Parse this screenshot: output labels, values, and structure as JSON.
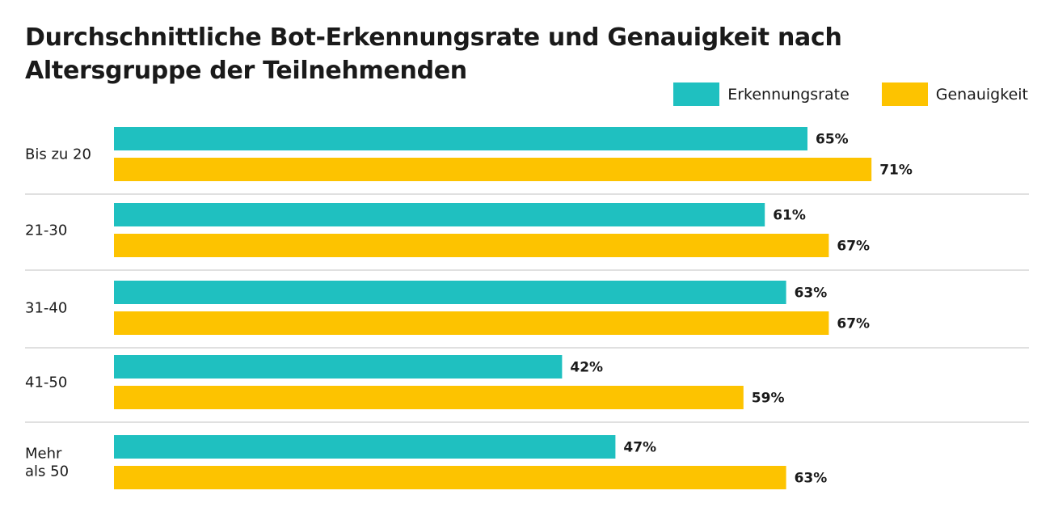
{
  "colors": {
    "Erkennungsrate": "#1fc0c0",
    "Genauigkeit": "#fdc300",
    "divider": "#d6d6d6"
  },
  "chart_data": {
    "type": "bar",
    "orientation": "horizontal",
    "title": "Durchschnittliche Bot-Erkennungsrate und Genauigkeit nach Altersgruppe der Teilnehmenden",
    "categories": [
      [
        "Bis zu 20"
      ],
      [
        "21-30"
      ],
      [
        "31-40"
      ],
      [
        "41-50"
      ],
      [
        "Mehr",
        "als 50"
      ]
    ],
    "series": [
      {
        "name": "Erkennungsrate",
        "values": [
          65,
          61,
          63,
          42,
          47
        ],
        "labels": [
          "65%",
          "61%",
          "63%",
          "42%",
          "47%"
        ]
      },
      {
        "name": "Genauigkeit",
        "values": [
          71,
          67,
          67,
          59,
          63
        ],
        "labels": [
          "71%",
          "67%",
          "67%",
          "59%",
          "63%"
        ]
      }
    ],
    "legend_position": "top-right",
    "grid": false
  }
}
